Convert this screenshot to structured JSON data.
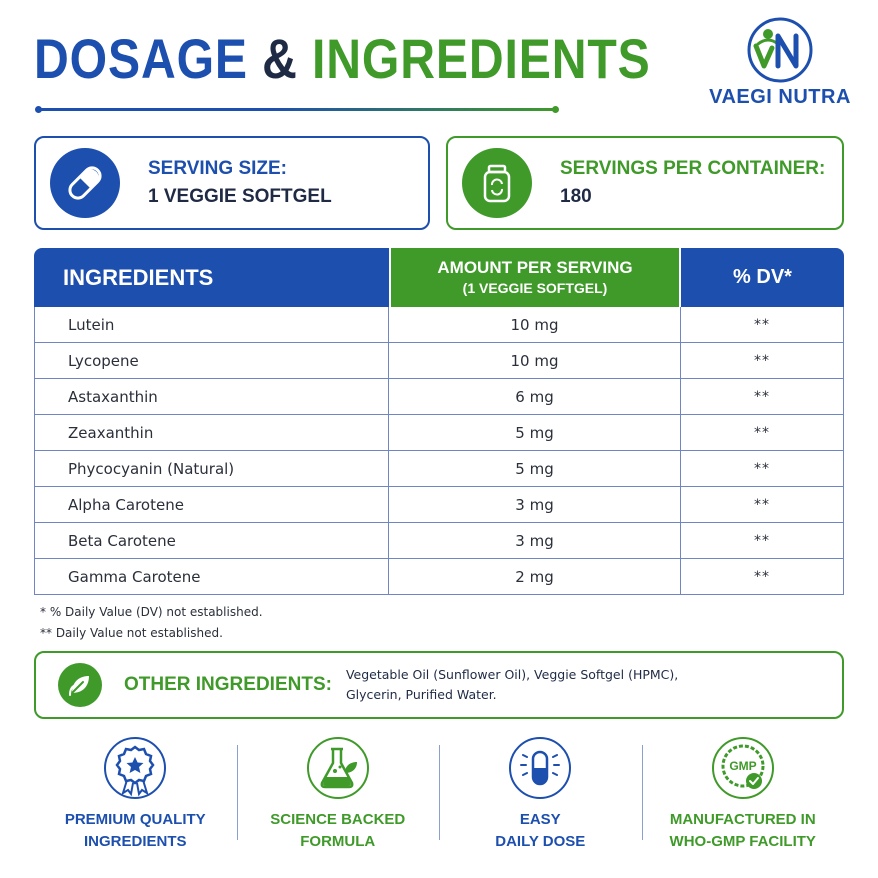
{
  "title": {
    "part1": "DOSAGE",
    "amp": "&",
    "part2": "INGREDIENTS"
  },
  "logo": {
    "name": "VAEGI NUTRA"
  },
  "serving": {
    "label": "SERVING SIZE:",
    "value": "1 VEGGIE SOFTGEL",
    "icon": "capsule-icon"
  },
  "container": {
    "label": "SERVINGS PER CONTAINER:",
    "value": "180",
    "icon": "bottle-icon"
  },
  "table": {
    "headers": {
      "ingredients": "INGREDIENTS",
      "amount": "AMOUNT PER SERVING",
      "amount_sub": "(1 VEGGIE SOFTGEL)",
      "dv": "% DV*"
    },
    "rows": [
      {
        "name": "Lutein",
        "amount": "10 mg",
        "dv": "**"
      },
      {
        "name": "Lycopene",
        "amount": "10 mg",
        "dv": "**"
      },
      {
        "name": "Astaxanthin",
        "amount": "6 mg",
        "dv": "**"
      },
      {
        "name": "Zeaxanthin",
        "amount": "5 mg",
        "dv": "**"
      },
      {
        "name": "Phycocyanin (Natural)",
        "amount": "5 mg",
        "dv": "**"
      },
      {
        "name": "Alpha Carotene",
        "amount": "3 mg",
        "dv": "**"
      },
      {
        "name": "Beta Carotene",
        "amount": "3 mg",
        "dv": "**"
      },
      {
        "name": "Gamma Carotene",
        "amount": "2 mg",
        "dv": "**"
      }
    ]
  },
  "notes": {
    "note1": "* % Daily Value (DV) not established.",
    "note2": "** Daily Value not established."
  },
  "other": {
    "label": "OTHER INGREDIENTS:",
    "line1": "Vegetable Oil (Sunflower Oil), Veggie Softgel (HPMC),",
    "line2": "Glycerin, Purified Water.",
    "icon": "leaf-icon"
  },
  "badges": [
    {
      "line1": "PREMIUM QUALITY",
      "line2": "INGREDIENTS",
      "icon": "award-ribbon-icon"
    },
    {
      "line1": "SCIENCE BACKED",
      "line2": "FORMULA",
      "icon": "flask-icon"
    },
    {
      "line1": "EASY",
      "line2": "DAILY DOSE",
      "icon": "capsule-icon"
    },
    {
      "line1": "MANUFACTURED IN",
      "line2": "WHO-GMP FACILITY",
      "icon": "gmp-seal-icon",
      "seal_text": "GMP"
    }
  ],
  "colors": {
    "blue": "#1d4fae",
    "green": "#3f9a2a",
    "dark": "#1f2a44"
  }
}
